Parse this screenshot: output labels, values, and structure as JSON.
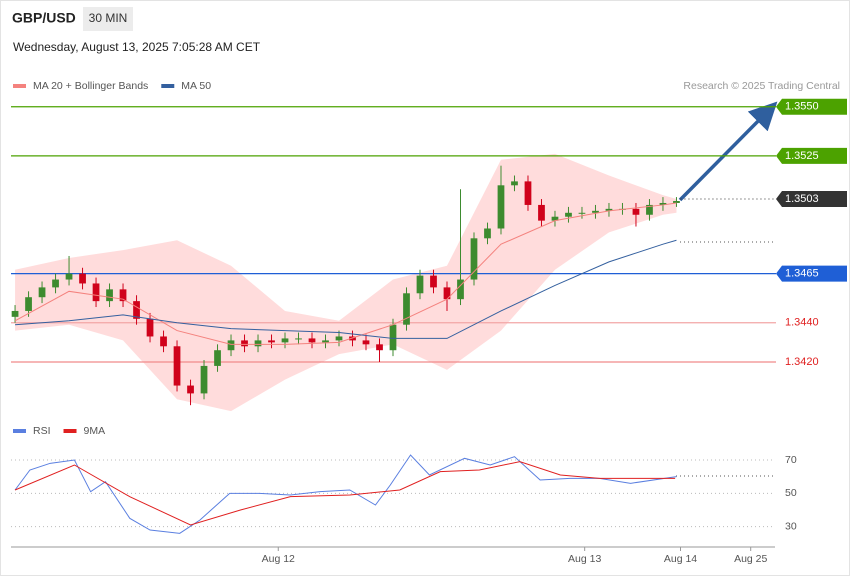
{
  "header": {
    "symbol": "GBP/USD",
    "interval": "30 MIN",
    "timestamp": "Wednesday, August 13, 2025 7:05:28 AM CET",
    "credit": "Research © 2025 Trading Central"
  },
  "chart_data": [
    {
      "type": "candlestick",
      "xlim": [
        -0.3,
        56.3
      ],
      "xticks": [
        {
          "value": 19.5,
          "label": "Aug 12"
        },
        {
          "value": 42.2,
          "label": "Aug 13"
        },
        {
          "value": 49.3,
          "label": "Aug 14"
        },
        {
          "value": 54.5,
          "label": "Aug 25"
        }
      ],
      "ylim": [
        1.3393,
        1.3556
      ],
      "up_color": "#3d8b2f",
      "down_color": "#d0021b",
      "open": [
        1.3443,
        1.3446,
        1.3453,
        1.3458,
        1.3462,
        1.3465,
        1.346,
        1.3451,
        1.3457,
        1.3451,
        1.3442,
        1.3433,
        1.3428,
        1.3408,
        1.3404,
        1.3418,
        1.3426,
        1.3431,
        1.3428,
        1.3431,
        1.343,
        1.3432,
        1.3432,
        1.343,
        1.3431,
        1.3433,
        1.3431,
        1.3429,
        1.3426,
        1.3439,
        1.3455,
        1.3464,
        1.3458,
        1.3452,
        1.3462,
        1.3483,
        1.3488,
        1.351,
        1.3512,
        1.35,
        1.3492,
        1.3494,
        1.3496,
        1.3496,
        1.3497,
        1.3498,
        1.3498,
        1.3495,
        1.35,
        1.3501
      ],
      "high": [
        1.3449,
        1.3456,
        1.3461,
        1.3465,
        1.3474,
        1.3468,
        1.3463,
        1.346,
        1.346,
        1.3454,
        1.3445,
        1.3436,
        1.3431,
        1.3411,
        1.3421,
        1.3429,
        1.3434,
        1.3434,
        1.3434,
        1.3434,
        1.3435,
        1.3435,
        1.3435,
        1.3434,
        1.3436,
        1.3436,
        1.3434,
        1.3432,
        1.3442,
        1.3458,
        1.3467,
        1.3467,
        1.3461,
        1.3508,
        1.3486,
        1.3491,
        1.352,
        1.3515,
        1.3515,
        1.3503,
        1.3497,
        1.3499,
        1.3499,
        1.35,
        1.3501,
        1.3501,
        1.3501,
        1.3503,
        1.3504,
        1.3504
      ],
      "low": [
        1.344,
        1.3443,
        1.345,
        1.3455,
        1.3459,
        1.3457,
        1.3448,
        1.3448,
        1.3448,
        1.3439,
        1.343,
        1.3425,
        1.3405,
        1.3398,
        1.3401,
        1.3415,
        1.3423,
        1.3425,
        1.3425,
        1.3427,
        1.3427,
        1.3429,
        1.3427,
        1.3427,
        1.3428,
        1.3428,
        1.3426,
        1.342,
        1.3423,
        1.3436,
        1.3452,
        1.3455,
        1.3446,
        1.3449,
        1.3459,
        1.348,
        1.3485,
        1.3507,
        1.3497,
        1.3489,
        1.3489,
        1.3491,
        1.3493,
        1.3493,
        1.3494,
        1.3495,
        1.3489,
        1.3492,
        1.3497,
        1.3499
      ],
      "close": [
        1.3446,
        1.3453,
        1.3458,
        1.3462,
        1.3465,
        1.346,
        1.3451,
        1.3457,
        1.3451,
        1.3442,
        1.3433,
        1.3428,
        1.3408,
        1.3404,
        1.3418,
        1.3426,
        1.3431,
        1.3428,
        1.3431,
        1.343,
        1.3432,
        1.3432,
        1.343,
        1.3431,
        1.3433,
        1.3431,
        1.3429,
        1.3426,
        1.3439,
        1.3455,
        1.3464,
        1.3458,
        1.3452,
        1.3462,
        1.3483,
        1.3488,
        1.351,
        1.3512,
        1.35,
        1.3492,
        1.3494,
        1.3496,
        1.3496,
        1.3497,
        1.3498,
        1.3498,
        1.3495,
        1.35,
        1.3501,
        1.3502
      ],
      "overlay_x": [
        0,
        4,
        8,
        12,
        16,
        20,
        24,
        28,
        32,
        36,
        40,
        44,
        48,
        49
      ],
      "series": [
        {
          "name": "MA 20 + Bollinger Bands",
          "color": "#f4827e",
          "band_color": "#ffdcdc",
          "values": [
            1.3441,
            1.3456,
            1.3452,
            1.3436,
            1.3429,
            1.3429,
            1.343,
            1.3439,
            1.3452,
            1.348,
            1.3492,
            1.3497,
            1.35,
            1.3501
          ],
          "upper": [
            1.3467,
            1.3473,
            1.3477,
            1.3482,
            1.3469,
            1.3446,
            1.3441,
            1.3462,
            1.3469,
            1.3523,
            1.3526,
            1.3515,
            1.3505,
            1.3503
          ],
          "lower": [
            1.3436,
            1.3439,
            1.3431,
            1.3401,
            1.3395,
            1.3411,
            1.3424,
            1.3429,
            1.3416,
            1.3436,
            1.3467,
            1.3486,
            1.3495,
            1.3496
          ]
        },
        {
          "name": "MA 50",
          "color": "#34609f",
          "values": [
            1.3439,
            1.3441,
            1.3444,
            1.344,
            1.3437,
            1.3436,
            1.3435,
            1.3432,
            1.3432,
            1.3446,
            1.3459,
            1.3471,
            1.348,
            1.3482
          ]
        }
      ],
      "levels": [
        {
          "value": 1.355,
          "label": "1.3550",
          "color": "#4ca200",
          "style": "badge"
        },
        {
          "value": 1.3525,
          "label": "1.3525",
          "color": "#4ca200",
          "style": "badge"
        },
        {
          "value": 1.3503,
          "label": "1.3503",
          "color": "#333333",
          "style": "dotted-badge"
        },
        {
          "value": 1.3465,
          "label": "1.3465",
          "color": "#1f5fd6",
          "style": "badge"
        },
        {
          "value": 1.344,
          "label": "1.3440",
          "color": "#f2a6a6",
          "text_color": "#e02020",
          "style": "text"
        },
        {
          "value": 1.342,
          "label": "1.3420",
          "color": "#f08a8a",
          "text_color": "#e02020",
          "style": "text"
        }
      ]
    },
    {
      "type": "line",
      "ylim": [
        19,
        79
      ],
      "yticks": [
        70,
        50,
        30
      ],
      "grid": true,
      "series": [
        {
          "name": "RSI",
          "color": "#5a7fe0",
          "x": [
            0,
            1.1,
            2.6,
            4.4,
            5.6,
            6.7,
            8.5,
            10,
            12.2,
            13.7,
            15.9,
            18.1,
            20.4,
            22.6,
            24.8,
            26.7,
            27.8,
            29.3,
            30.7,
            33.3,
            35.2,
            37,
            38.9,
            41.1,
            43.3,
            45.6,
            49
          ],
          "values": [
            52,
            64,
            68,
            70,
            51,
            57,
            35,
            28,
            26,
            34,
            50,
            50,
            49,
            51,
            52,
            43,
            55,
            73,
            61,
            71,
            67,
            72,
            58,
            59,
            59,
            56,
            60
          ]
        },
        {
          "name": "9MA",
          "color": "#e02020",
          "x": [
            0,
            4.4,
            8.5,
            13,
            16.7,
            20.4,
            24.8,
            28.5,
            31.5,
            34.4,
            37.4,
            40.4,
            43.3,
            48.9
          ],
          "values": [
            52,
            67,
            48,
            31,
            40,
            48,
            49,
            52,
            63,
            64,
            69,
            61,
            59,
            59
          ]
        }
      ]
    }
  ]
}
